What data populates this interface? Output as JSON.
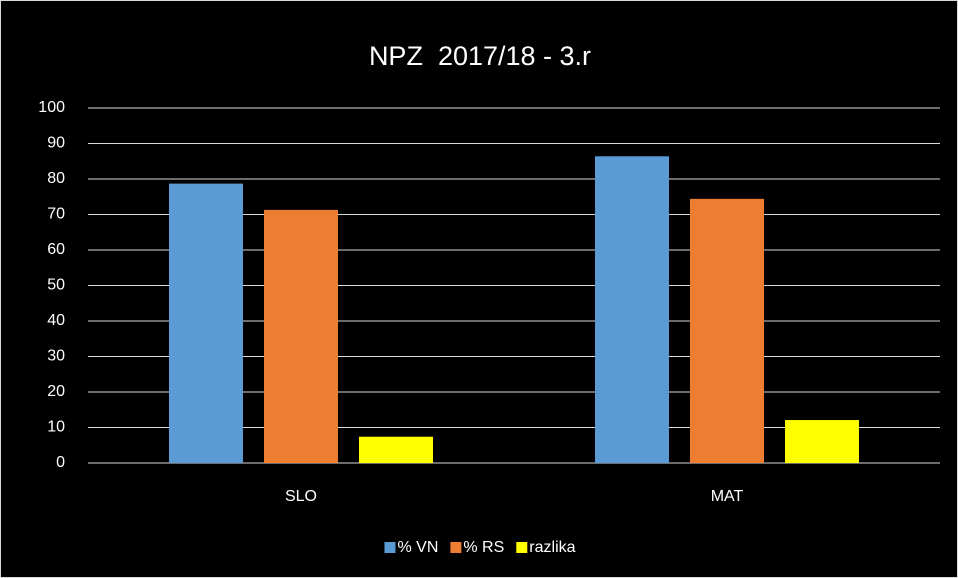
{
  "chart_data": {
    "type": "bar",
    "title": "NPZ  2017/18 - 3.r",
    "categories": [
      "SLO",
      "MAT"
    ],
    "series": [
      {
        "name": "% VN",
        "color": "#5b9bd5",
        "values": [
          78.7,
          86.4
        ]
      },
      {
        "name": "% RS",
        "color": "#ed7d31",
        "values": [
          71.3,
          74.4
        ]
      },
      {
        "name": "razlika",
        "color": "#ffff00",
        "values": [
          7.4,
          12.1
        ]
      }
    ],
    "ylim": [
      0,
      100
    ],
    "yticks": [
      0,
      10,
      20,
      30,
      40,
      50,
      60,
      70,
      80,
      90,
      100
    ],
    "grid": true,
    "legend": "bottom"
  }
}
